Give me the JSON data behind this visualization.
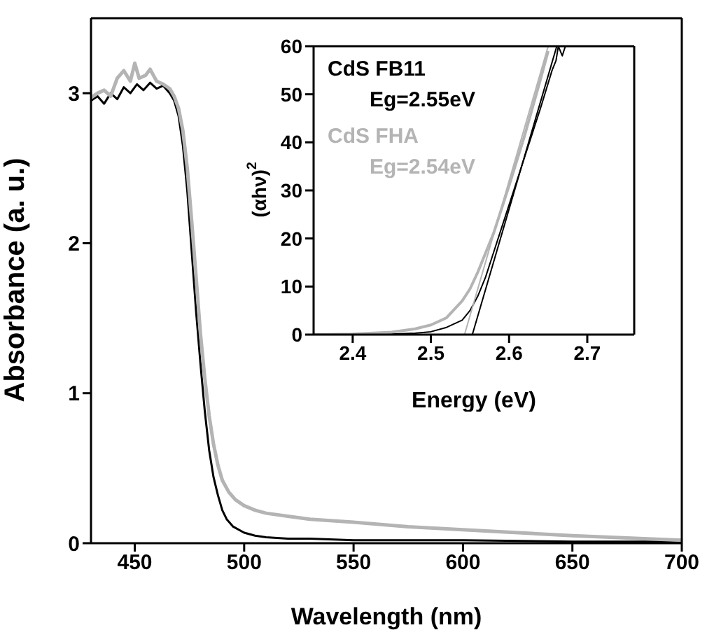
{
  "chart_data": [
    {
      "type": "line",
      "xlabel": "Wavelength (nm)",
      "ylabel": "Absorbance (a. u.)",
      "xlim": [
        430,
        700
      ],
      "xticks": [
        450,
        500,
        550,
        600,
        650,
        700
      ],
      "ylim": [
        0,
        3.5
      ],
      "yticks": [
        0,
        1,
        2,
        3
      ],
      "marker": "none",
      "line_style": "solid",
      "series": [
        {
          "color": "#000000",
          "x": [
            430,
            433,
            436,
            439,
            442,
            445,
            448,
            451,
            454,
            457,
            460,
            463,
            466,
            468,
            470,
            472,
            474,
            476,
            478,
            480,
            482,
            484,
            486,
            488,
            490,
            492,
            495,
            500,
            505,
            510,
            520,
            530,
            550,
            575,
            600,
            650,
            700
          ],
          "values": [
            2.95,
            2.98,
            2.93,
            3.0,
            2.96,
            3.04,
            3.0,
            3.06,
            3.02,
            3.07,
            3.03,
            3.05,
            3.0,
            2.95,
            2.85,
            2.65,
            2.35,
            1.95,
            1.55,
            1.2,
            0.88,
            0.62,
            0.44,
            0.32,
            0.22,
            0.16,
            0.11,
            0.07,
            0.05,
            0.04,
            0.03,
            0.03,
            0.02,
            0.02,
            0.02,
            0.01,
            0.01
          ]
        },
        {
          "color": "#b4b4b4",
          "x": [
            430,
            433,
            436,
            439,
            442,
            445,
            448,
            450,
            452,
            455,
            457,
            460,
            463,
            466,
            468,
            470,
            472,
            474,
            476,
            478,
            480,
            482,
            484,
            486,
            488,
            490,
            493,
            496,
            500,
            505,
            510,
            520,
            530,
            550,
            575,
            600,
            650,
            700
          ],
          "values": [
            2.97,
            3.0,
            3.02,
            2.98,
            3.1,
            3.15,
            3.08,
            3.2,
            3.1,
            3.12,
            3.16,
            3.08,
            3.06,
            3.03,
            2.98,
            2.9,
            2.75,
            2.5,
            2.15,
            1.78,
            1.4,
            1.1,
            0.85,
            0.66,
            0.52,
            0.42,
            0.34,
            0.29,
            0.25,
            0.22,
            0.2,
            0.18,
            0.16,
            0.14,
            0.11,
            0.09,
            0.05,
            0.02
          ]
        }
      ]
    },
    {
      "type": "line",
      "xlabel": "Energy (eV)",
      "ylabel": "(αhν)$^{2}$",
      "xlim": [
        2.35,
        2.76
      ],
      "xticks": [
        2.4,
        2.5,
        2.6,
        2.7
      ],
      "ylim": [
        0,
        60
      ],
      "yticks": [
        0,
        10,
        20,
        30,
        40,
        50,
        60
      ],
      "marker": "none",
      "line_style": "solid",
      "annotations": [
        "Eg=2.55eV",
        "Eg=2.54eV"
      ],
      "series": [
        {
          "name": "CdS FB11",
          "color": "#000000",
          "x": [
            2.35,
            2.4,
            2.45,
            2.48,
            2.5,
            2.52,
            2.54,
            2.55,
            2.56,
            2.57,
            2.58,
            2.59,
            2.6,
            2.62,
            2.64,
            2.655,
            2.66,
            2.663,
            2.668,
            2.672
          ],
          "values": [
            0,
            0,
            0.1,
            0.3,
            0.6,
            1.5,
            3,
            5,
            8,
            12,
            17,
            22,
            27,
            37,
            47,
            55,
            57,
            60,
            58,
            60
          ]
        },
        {
          "name": "CdS FHA",
          "color": "#b4b4b4",
          "x": [
            2.35,
            2.4,
            2.45,
            2.48,
            2.5,
            2.52,
            2.54,
            2.55,
            2.56,
            2.58,
            2.6,
            2.62,
            2.64,
            2.65
          ],
          "values": [
            0,
            0.1,
            0.5,
            1.2,
            2,
            3.5,
            7,
            9.5,
            13,
            21,
            31,
            41.5,
            53,
            59
          ]
        },
        {
          "type": "line",
          "color": "#000000",
          "x": [
            2.553,
            2.661
          ],
          "values": [
            0,
            60
          ]
        },
        {
          "type": "line",
          "color": "#b4b4b4",
          "x": [
            2.543,
            2.65
          ],
          "values": [
            0,
            60
          ]
        }
      ]
    }
  ]
}
